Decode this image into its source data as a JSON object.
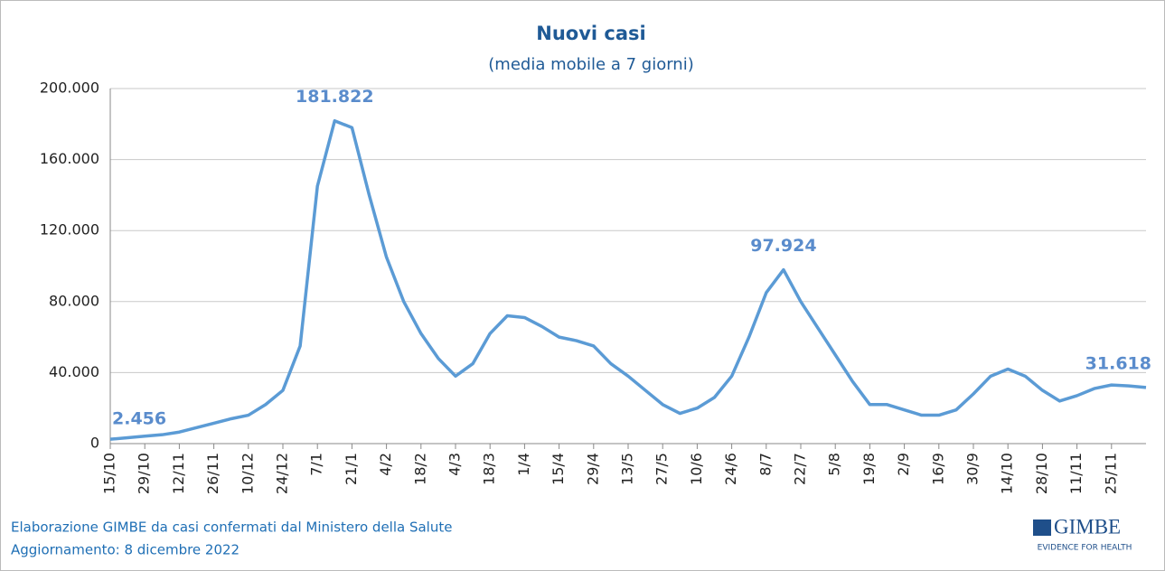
{
  "chart_data": {
    "type": "line",
    "title": "Nuovi casi",
    "subtitle": "(media mobile a 7 giorni)",
    "categories": [
      "15/10",
      null,
      "29/10",
      null,
      "12/11",
      null,
      "26/11",
      null,
      "10/12",
      null,
      "24/12",
      null,
      "7/1",
      null,
      "21/1",
      null,
      "4/2",
      null,
      "18/2",
      null,
      "4/3",
      null,
      "18/3",
      null,
      "1/4",
      null,
      "15/4",
      null,
      "29/4",
      null,
      "13/5",
      null,
      "27/5",
      null,
      "10/6",
      null,
      "24/6",
      null,
      "8/7",
      null,
      "22/7",
      null,
      "5/8",
      null,
      "19/8",
      null,
      "2/9",
      null,
      "16/9",
      null,
      "30/9",
      null,
      "14/10",
      null,
      "28/10",
      null,
      "11/11",
      null,
      "25/11",
      null,
      null
    ],
    "values": [
      2456,
      3300,
      4200,
      5000,
      6500,
      9000,
      11500,
      14000,
      16000,
      22000,
      30000,
      55000,
      145000,
      181822,
      178000,
      140000,
      105000,
      80000,
      62000,
      48000,
      38000,
      45000,
      62000,
      72000,
      71000,
      66000,
      60000,
      58000,
      55000,
      45000,
      38000,
      30000,
      22000,
      17000,
      20000,
      26000,
      38000,
      60000,
      85000,
      97924,
      80000,
      65000,
      50000,
      35000,
      22000,
      22000,
      19000,
      16000,
      16000,
      19000,
      28000,
      38000,
      42000,
      38000,
      30000,
      24000,
      27000,
      31000,
      33000,
      32500,
      31618
    ],
    "value_labels": [
      "2.456",
      null,
      null,
      null,
      null,
      null,
      null,
      null,
      null,
      null,
      null,
      null,
      null,
      "181.822",
      null,
      null,
      null,
      null,
      null,
      null,
      null,
      null,
      null,
      null,
      null,
      null,
      null,
      null,
      null,
      null,
      null,
      null,
      null,
      null,
      null,
      null,
      null,
      null,
      null,
      "97.924",
      null,
      null,
      null,
      null,
      null,
      null,
      null,
      null,
      null,
      null,
      null,
      null,
      null,
      null,
      null,
      null,
      null,
      null,
      null,
      null,
      "31.618"
    ],
    "color": "#5b9bd5",
    "ylim": [
      0,
      200000
    ],
    "yticks": [
      0,
      {
        "value": 40000,
        "label": "40.000"
      },
      {
        "value": 80000,
        "label": "80.000"
      },
      {
        "value": 120000,
        "label": "120.000"
      },
      {
        "value": 160000,
        "label": "160.000"
      },
      {
        "value": 200000,
        "label": "200.000"
      }
    ],
    "grid": true,
    "source": "Elaborazione GIMBE da casi confermati dal Ministero della Salute",
    "updated": "Aggiornamento: 8 dicembre 2022",
    "logo": "GIMBE",
    "logo_tagline": "EVIDENCE FOR HEALTH"
  }
}
